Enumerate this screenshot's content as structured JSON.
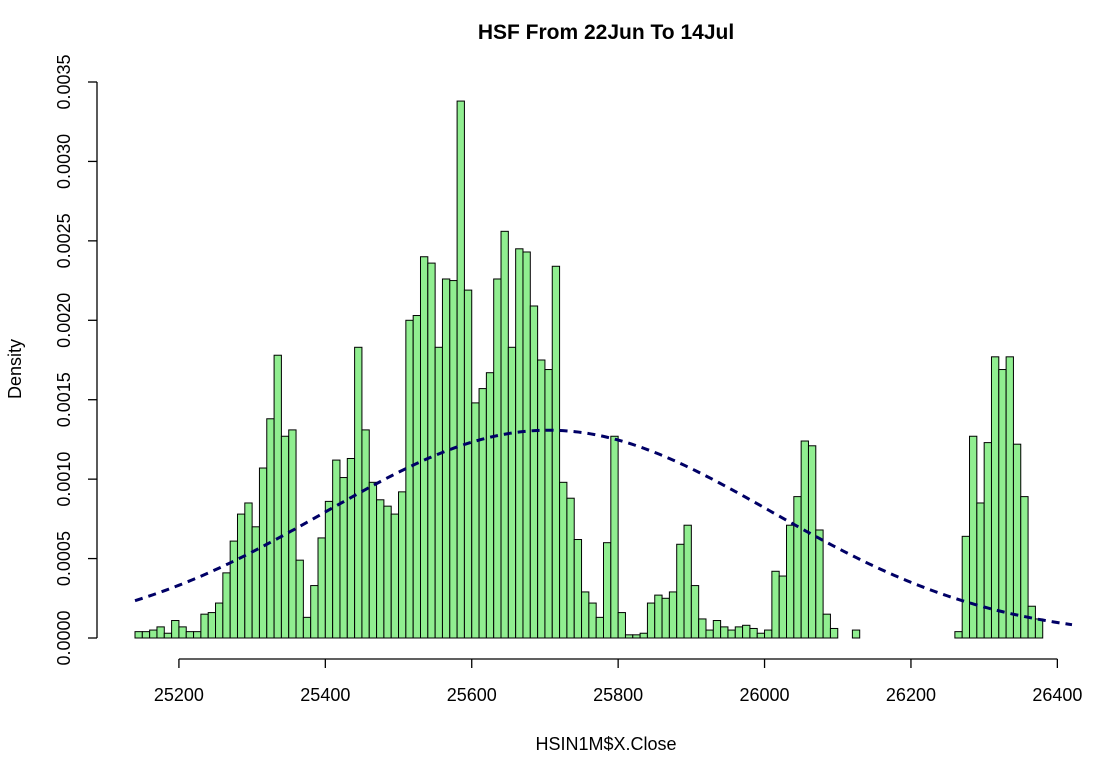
{
  "chart_data": {
    "type": "histogram",
    "title": "HSF From 22Jun To 14Jul",
    "xlabel": "HSIN1M$X.Close",
    "ylabel": "Density",
    "xlim": [
      25140,
      26420
    ],
    "ylim": [
      0,
      0.0035
    ],
    "xticks": [
      25200,
      25400,
      25600,
      25800,
      26000,
      26200,
      26400
    ],
    "xtick_labels": [
      "25200",
      "25400",
      "25600",
      "25800",
      "26000",
      "26200",
      "26400"
    ],
    "yticks": [
      0,
      0.0005,
      0.001,
      0.0015,
      0.002,
      0.0025,
      0.003,
      0.0035
    ],
    "ytick_labels": [
      "0.0000",
      "0.0005",
      "0.0010",
      "0.0015",
      "0.0020",
      "0.0025",
      "0.0030",
      "0.0035"
    ],
    "grid": false,
    "bin_start": 25140,
    "bin_width": 10,
    "bar_fill": "#90EE90",
    "bar_stroke": "#000000",
    "curve_color": "#000066",
    "curve": {
      "kind": "normal_density",
      "mean": 25705,
      "sd": 305
    },
    "densities": [
      4e-05,
      4e-05,
      5e-05,
      7e-05,
      3e-05,
      0.00011,
      7e-05,
      4e-05,
      4e-05,
      0.00015,
      0.00016,
      0.00022,
      0.00041,
      0.00061,
      0.00078,
      0.00085,
      0.0007,
      0.00107,
      0.00138,
      0.00178,
      0.00127,
      0.00131,
      0.00049,
      0.00013,
      0.00033,
      0.00063,
      0.00086,
      0.00112,
      0.00101,
      0.00113,
      0.00183,
      0.00131,
      0.00098,
      0.00087,
      0.00083,
      0.00078,
      0.00092,
      0.002,
      0.00203,
      0.0024,
      0.00236,
      0.00183,
      0.00226,
      0.00225,
      0.00338,
      0.00219,
      0.00148,
      0.00157,
      0.00167,
      0.00226,
      0.00256,
      0.00183,
      0.00245,
      0.00243,
      0.00209,
      0.00175,
      0.00169,
      0.00234,
      0.00098,
      0.00088,
      0.00062,
      0.00029,
      0.00022,
      0.00013,
      0.0006,
      0.00127,
      0.00016,
      2e-05,
      2e-05,
      3e-05,
      0.00022,
      0.00027,
      0.00025,
      0.00029,
      0.00059,
      0.00071,
      0.00033,
      0.00012,
      5e-05,
      0.00011,
      7e-05,
      5e-05,
      7e-05,
      8e-05,
      6e-05,
      3e-05,
      5e-05,
      0.00042,
      0.00039,
      0.00071,
      0.00089,
      0.00124,
      0.00121,
      0.00068,
      0.00015,
      6e-05,
      0,
      0,
      5e-05,
      0,
      0,
      0,
      0,
      0,
      0,
      0,
      0,
      0,
      0,
      0,
      0,
      0,
      4e-05,
      0.00064,
      0.00127,
      0.00085,
      0.00123,
      0.00177,
      0.00169,
      0.00177,
      0.00122,
      0.00089,
      0.0002,
      0.00012
    ]
  }
}
